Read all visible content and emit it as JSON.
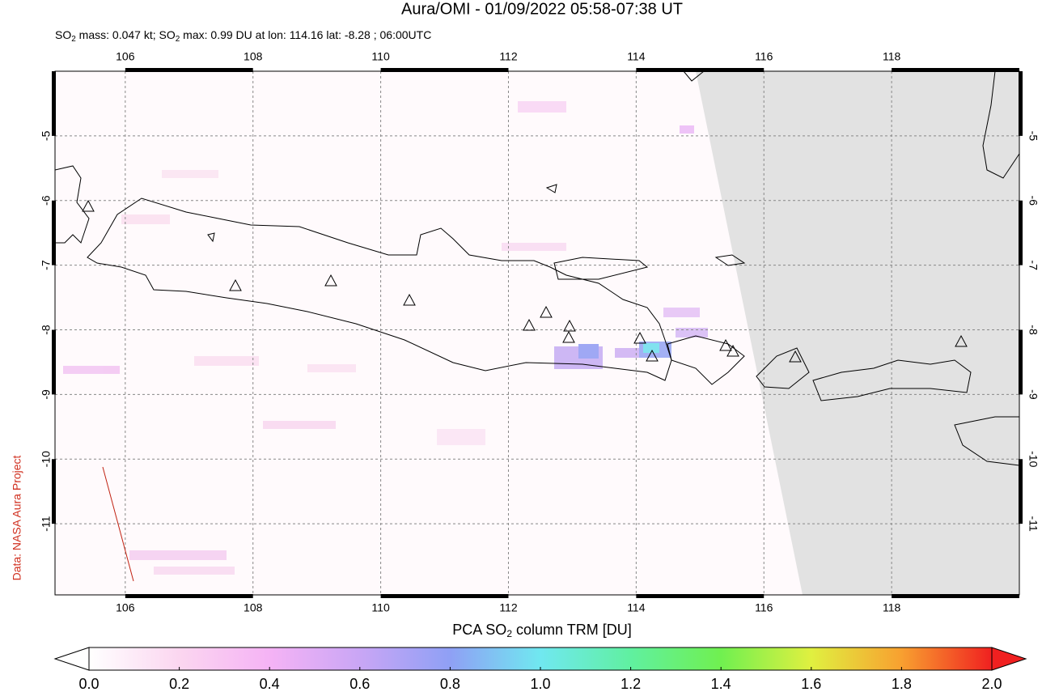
{
  "map": {
    "title": "Aura/OMI - 01/09/2022 05:58-07:38 UT",
    "subtitle": [
      "SO",
      "2",
      " mass: 0.047 kt; SO",
      "2",
      " max: 0.99 DU at lon: 114.16 lat: -8.28 ; 06:00UTC"
    ],
    "credit": "Data: NASA Aura Project",
    "xlim": [
      104.9,
      120
    ],
    "ylim": [
      -12.1,
      -4
    ],
    "xticks": [
      106,
      108,
      110,
      112,
      114,
      116,
      118
    ],
    "yticks": [
      -5,
      -6,
      -7,
      -8,
      -9,
      -10,
      -11
    ],
    "grid": true,
    "colorbar": {
      "label": [
        "PCA SO",
        "2",
        " column TRM [DU]"
      ],
      "xlim": [
        0,
        2
      ],
      "ticks": [
        {
          "value": 0,
          "label": "0.0"
        },
        {
          "value": 0.2,
          "label": "0.2"
        },
        {
          "value": 0.4,
          "label": "0.4"
        },
        {
          "value": 0.6,
          "label": "0.6"
        },
        {
          "value": 0.8,
          "label": "0.8"
        },
        {
          "value": 1,
          "label": "1.0"
        },
        {
          "value": 1.2,
          "label": "1.2"
        },
        {
          "value": 1.4,
          "label": "1.4"
        },
        {
          "value": 1.6,
          "label": "1.6"
        },
        {
          "value": 1.8,
          "label": "1.8"
        },
        {
          "value": 2,
          "label": "2.0"
        }
      ],
      "colors": [
        "#ffffff",
        "#fbd6f0",
        "#f5b3f5",
        "#c9a6f5",
        "#8fa0f5",
        "#70e8f0",
        "#60f0a0",
        "#70f050",
        "#e0f040",
        "#f8a030",
        "#f02020"
      ]
    }
  }
}
